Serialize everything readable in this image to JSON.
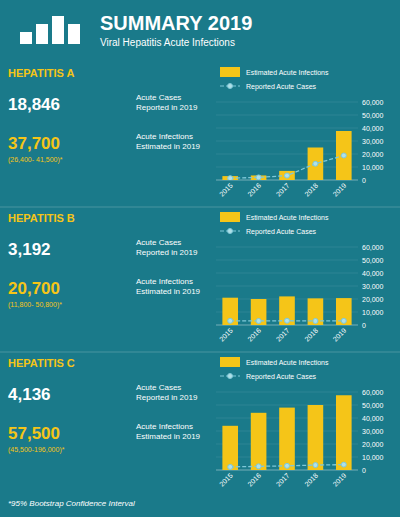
{
  "title": "SUMMARY 2019",
  "subtitle": "Viral Hepatitis Acute Infections",
  "footnote": "*95% Bootstrap Confidence Interval",
  "chart_data": [
    {
      "type": "bar",
      "title": "HEPATITIS A",
      "annotations": [
        "18,846",
        "Acute Cases\nReported in 2019",
        "37,700",
        "(26,400- 41,500)*",
        "Acute Infections\nEstimated in 2019"
      ],
      "categories": [
        "2015",
        "2016",
        "2017",
        "2018",
        "2019"
      ],
      "series": [
        {
          "name": "Estimated Acute Infections",
          "type": "bar",
          "color": "#f5c518",
          "values": [
            3000,
            3500,
            7000,
            25000,
            37700
          ]
        },
        {
          "name": "Reported Acute Cases",
          "type": "line",
          "color": "#7ec8d8",
          "marker": "o",
          "line_style": "dashed",
          "values": [
            1400,
            2000,
            3400,
            12500,
            18846
          ]
        }
      ],
      "ylim": [
        0,
        60000
      ],
      "yticks": [
        0,
        {
          "value": 10000,
          "label": "10,000"
        },
        {
          "value": 20000,
          "label": "20,000"
        },
        {
          "value": 30000,
          "label": "30,000"
        },
        {
          "value": 40000,
          "label": "40,000"
        },
        {
          "value": 50000,
          "label": "50,000"
        },
        {
          "value": 60000,
          "label": "60,000"
        }
      ],
      "grid": true,
      "legend": "top"
    },
    {
      "type": "bar",
      "title": "HEPATITIS B",
      "annotations": [
        "3,192",
        "Acute Cases\nReported in 2019",
        "20,700",
        "(11,800- 50,800)*",
        "Acute Infections\nEstimated in 2019"
      ],
      "categories": [
        "2015",
        "2016",
        "2017",
        "2018",
        "2019"
      ],
      "series": [
        {
          "name": "Estimated Acute Infections",
          "type": "bar",
          "color": "#f5c518",
          "values": [
            21000,
            20000,
            22000,
            20500,
            20700
          ]
        },
        {
          "name": "Reported Acute Cases",
          "type": "line",
          "color": "#7ec8d8",
          "marker": "o",
          "line_style": "dashed",
          "values": [
            3200,
            3100,
            3300,
            3100,
            3192
          ]
        }
      ],
      "ylim": [
        0,
        60000
      ],
      "yticks": [
        0,
        {
          "value": 10000,
          "label": "10,000"
        },
        {
          "value": 20000,
          "label": "20,000"
        },
        {
          "value": 30000,
          "label": "30,000"
        },
        {
          "value": 40000,
          "label": "40,000"
        },
        {
          "value": 50000,
          "label": "50,000"
        },
        {
          "value": 60000,
          "label": "60,000"
        }
      ],
      "grid": true,
      "legend": "top"
    },
    {
      "type": "bar",
      "title": "HEPATITIS C",
      "annotations": [
        "4,136",
        "Acute Cases\nReported in 2019",
        "57,500",
        "(45,500-196,000)*",
        "Acute Infections\nEstimated in 2019"
      ],
      "categories": [
        "2015",
        "2016",
        "2017",
        "2018",
        "2019"
      ],
      "series": [
        {
          "name": "Estimated Acute Infections",
          "type": "bar",
          "color": "#f5c518",
          "values": [
            34000,
            44000,
            48000,
            50000,
            57500
          ]
        },
        {
          "name": "Reported Acute Cases",
          "type": "line",
          "color": "#7ec8d8",
          "marker": "o",
          "line_style": "dashed",
          "values": [
            2400,
            2800,
            3200,
            3800,
            4136
          ]
        }
      ],
      "ylim": [
        0,
        60000
      ],
      "yticks": [
        0,
        {
          "value": 10000,
          "label": "10,000"
        },
        {
          "value": 20000,
          "label": "20,000"
        },
        {
          "value": 30000,
          "label": "30,000"
        },
        {
          "value": 40000,
          "label": "40,000"
        },
        {
          "value": 50000,
          "label": "50,000"
        },
        {
          "value": 60000,
          "label": "60,000"
        }
      ],
      "grid": true,
      "legend": "top"
    }
  ]
}
